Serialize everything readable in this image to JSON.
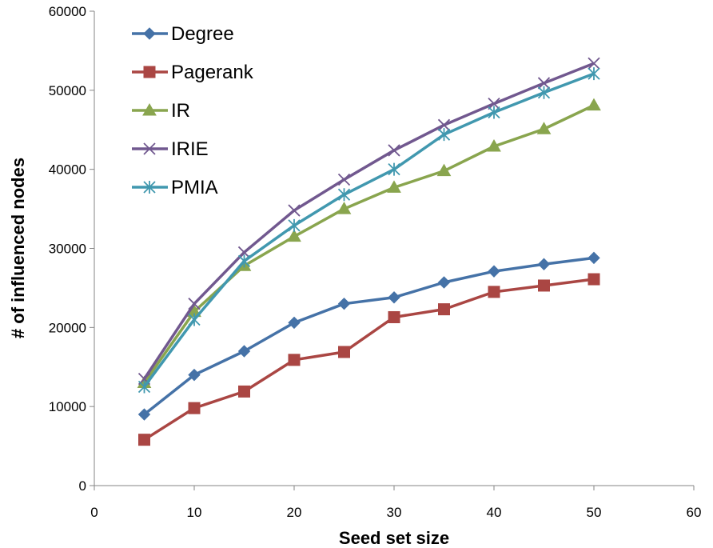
{
  "chart_data": {
    "type": "line",
    "title": "",
    "xlabel": "Seed set size",
    "ylabel": "# of influenced nodes",
    "xlim": [
      0,
      60
    ],
    "ylim": [
      0,
      60000
    ],
    "x_ticks": [
      0,
      10,
      20,
      30,
      40,
      50,
      60
    ],
    "y_ticks": [
      0,
      10000,
      20000,
      30000,
      40000,
      50000,
      60000
    ],
    "x_tick_labels": [
      "0",
      "10",
      "20",
      "30",
      "40",
      "50",
      "60"
    ],
    "y_tick_labels": [
      "0",
      "10000",
      "20000",
      "30000",
      "40000",
      "50000",
      "60000"
    ],
    "grid": false,
    "legend_position": "top-left",
    "x": [
      5,
      10,
      15,
      20,
      25,
      30,
      35,
      40,
      45,
      50
    ],
    "series": [
      {
        "name": "Degree",
        "color": "#4572A7",
        "marker": "diamond",
        "values": [
          9000,
          14000,
          17000,
          20600,
          23000,
          23800,
          25700,
          27100,
          28000,
          28800
        ]
      },
      {
        "name": "Pagerank",
        "color": "#AA4643",
        "marker": "square",
        "values": [
          5800,
          9800,
          11900,
          15900,
          16900,
          21300,
          22300,
          24500,
          25300,
          26100
        ]
      },
      {
        "name": "IR",
        "color": "#89A54E",
        "marker": "triangle",
        "values": [
          13000,
          22000,
          27800,
          31500,
          35000,
          37700,
          39800,
          42900,
          45100,
          48100
        ]
      },
      {
        "name": "IRIE",
        "color": "#71588F",
        "marker": "x",
        "values": [
          13500,
          23000,
          29500,
          34800,
          38700,
          42400,
          45600,
          48300,
          50900,
          53400
        ]
      },
      {
        "name": "PMIA",
        "color": "#4198AF",
        "marker": "asterisk",
        "values": [
          12500,
          21000,
          28400,
          32900,
          36800,
          40000,
          44400,
          47200,
          49700,
          52100
        ]
      }
    ]
  }
}
